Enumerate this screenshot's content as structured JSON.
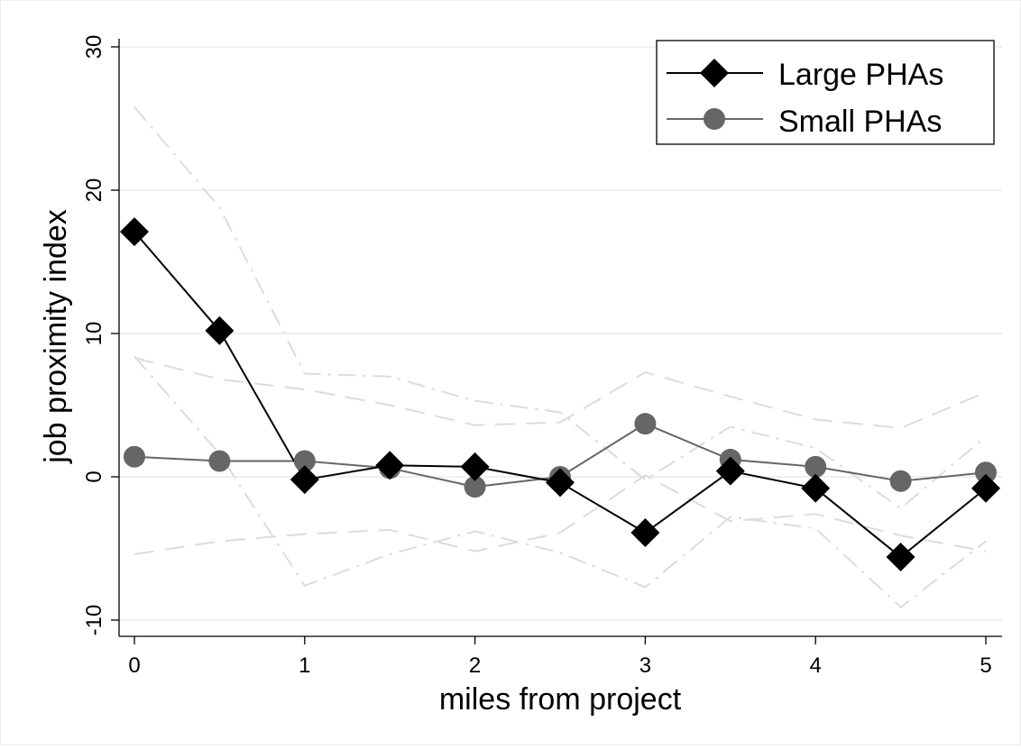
{
  "chart_data": {
    "type": "line",
    "xlabel": "miles from project",
    "ylabel": "job proximity index",
    "xlim": [
      0,
      5
    ],
    "ylim": [
      -11,
      30
    ],
    "x_ticks": [
      0,
      1,
      2,
      3,
      4,
      5
    ],
    "y_ticks": [
      -10,
      0,
      10,
      20,
      30
    ],
    "x_tick_labels": [
      "0",
      "1",
      "2",
      "3",
      "4",
      "5"
    ],
    "y_tick_labels": [
      "-10",
      "0",
      "10",
      "20",
      "30"
    ],
    "grid": true,
    "legend_position": "top-right",
    "x": [
      0,
      0.5,
      1,
      1.5,
      2,
      2.5,
      3,
      3.5,
      4,
      4.5,
      5
    ],
    "series": [
      {
        "name": "Large PHAs",
        "color": "#000000",
        "marker": "diamond",
        "values": [
          17.1,
          10.2,
          -0.2,
          0.8,
          0.7,
          -0.4,
          -3.9,
          0.4,
          -0.8,
          -5.6,
          -0.8
        ]
      },
      {
        "name": "Small PHAs",
        "color": "#666666",
        "marker": "circle",
        "values": [
          1.4,
          1.1,
          1.1,
          0.6,
          -0.7,
          0.0,
          3.7,
          1.2,
          0.7,
          -0.3,
          0.3
        ]
      }
    ],
    "confidence_bands": [
      {
        "style": "dash-dot",
        "color": "#dcdcdc",
        "upper": [
          25.8,
          18.8,
          7.2,
          7.0,
          5.3,
          4.5,
          -0.2,
          3.5,
          2.0,
          -2.2,
          2.8
        ],
        "lower": [
          8.4,
          1.6,
          -7.6,
          -5.4,
          -3.8,
          -5.3,
          -7.7,
          -2.8,
          -3.6,
          -9.1,
          -4.5
        ]
      },
      {
        "style": "dash",
        "color": "#dcdcdc",
        "upper": [
          8.3,
          6.8,
          6.1,
          5.0,
          3.6,
          3.8,
          7.3,
          5.6,
          4.0,
          3.4,
          5.9
        ],
        "lower": [
          -5.4,
          -4.5,
          -4.0,
          -3.7,
          -5.2,
          -3.9,
          0.1,
          -3.1,
          -2.6,
          -4.1,
          -5.2
        ]
      }
    ]
  }
}
